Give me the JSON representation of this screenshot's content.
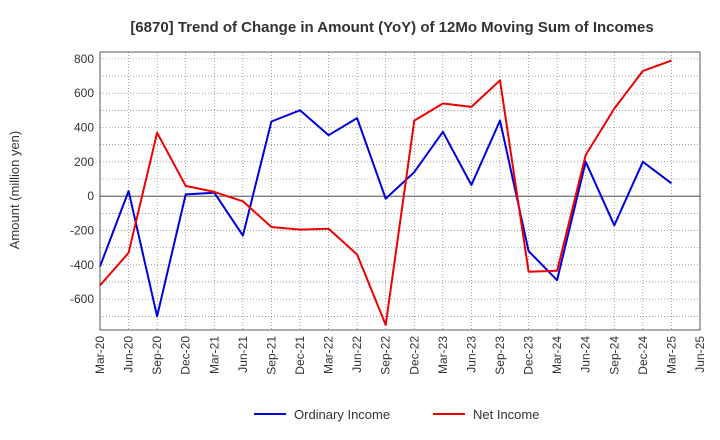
{
  "chart_data": {
    "type": "line",
    "title": "[6870]  Trend of Change in Amount (YoY) of 12Mo Moving Sum of Incomes",
    "ylabel": "Amount (million yen)",
    "xlabel": "",
    "ylim": [
      -780,
      840
    ],
    "yticks": [
      800,
      600,
      400,
      200,
      0,
      -200,
      -400,
      -600
    ],
    "grid": true,
    "legend_position": "bottom",
    "x": [
      "Mar-20",
      "Jun-20",
      "Sep-20",
      "Dec-20",
      "Mar-21",
      "Jun-21",
      "Sep-21",
      "Dec-21",
      "Mar-22",
      "Jun-22",
      "Sep-22",
      "Dec-22",
      "Mar-23",
      "Jun-23",
      "Sep-23",
      "Dec-23",
      "Mar-24",
      "Jun-24",
      "Sep-24",
      "Dec-24",
      "Mar-25",
      "Jun-25"
    ],
    "series": [
      {
        "name": "Ordinary Income",
        "color": "#0000dd",
        "values": [
          -410,
          30,
          -700,
          10,
          20,
          -230,
          435,
          500,
          355,
          455,
          -15,
          140,
          375,
          65,
          440,
          -320,
          -490,
          200,
          -170,
          200,
          75,
          null
        ]
      },
      {
        "name": "Net Income",
        "color": "#ee0000",
        "values": [
          -520,
          -330,
          370,
          60,
          25,
          -30,
          -180,
          -195,
          -190,
          -340,
          -750,
          440,
          540,
          520,
          675,
          -440,
          -435,
          240,
          510,
          730,
          790,
          null
        ]
      }
    ]
  }
}
